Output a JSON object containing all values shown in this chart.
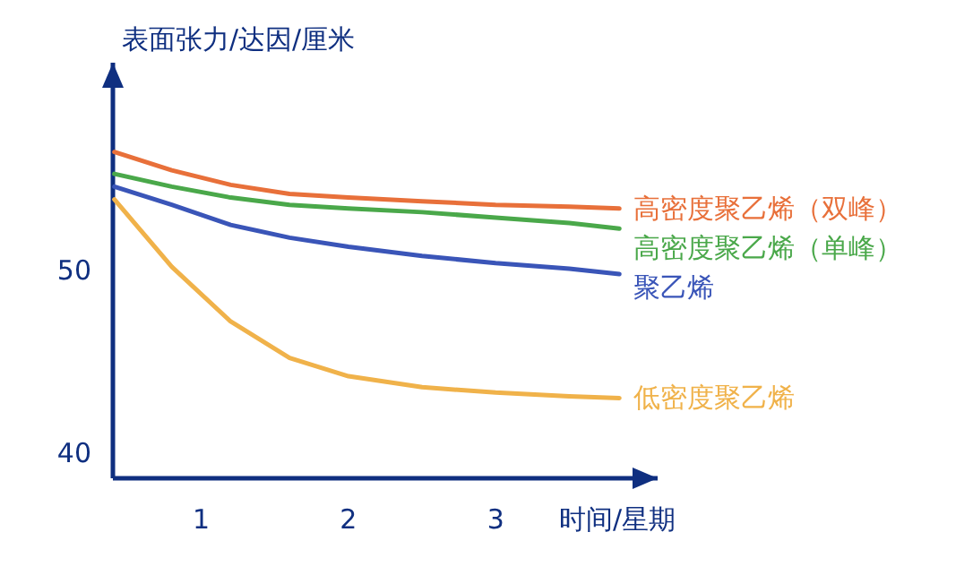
{
  "chart_data": {
    "type": "line",
    "xlabel": "时间/星期",
    "ylabel": "表面张力/达因/厘米",
    "xlim": [
      0.4,
      4.1
    ],
    "xticks": [
      1,
      2,
      3
    ],
    "ylim": [
      38.6,
      61.4
    ],
    "yticks": [
      40,
      50
    ],
    "series": [
      {
        "name": "高密度聚乙烯（双峰）",
        "color": "#e8703a",
        "x": [
          0.41,
          0.8,
          1.2,
          1.6,
          2.0,
          2.5,
          3.0,
          3.5,
          3.84
        ],
        "values": [
          56.5,
          55.5,
          54.7,
          54.2,
          54.0,
          53.8,
          53.6,
          53.5,
          53.4
        ]
      },
      {
        "name": "高密度聚乙烯（单峰）",
        "color": "#4aa84a",
        "x": [
          0.41,
          0.8,
          1.2,
          1.6,
          2.0,
          2.5,
          3.0,
          3.5,
          3.84
        ],
        "values": [
          55.3,
          54.6,
          54.0,
          53.6,
          53.4,
          53.2,
          52.9,
          52.6,
          52.3
        ]
      },
      {
        "name": "聚乙烯",
        "color": "#3a55b8",
        "x": [
          0.41,
          0.8,
          1.2,
          1.6,
          2.0,
          2.5,
          3.0,
          3.5,
          3.84
        ],
        "values": [
          54.6,
          53.6,
          52.5,
          51.8,
          51.3,
          50.8,
          50.4,
          50.1,
          49.8
        ]
      },
      {
        "name": "低密度聚乙烯",
        "color": "#f0b24a",
        "x": [
          0.41,
          0.8,
          1.2,
          1.6,
          2.0,
          2.5,
          3.0,
          3.5,
          3.84
        ],
        "values": [
          53.9,
          50.2,
          47.2,
          45.2,
          44.2,
          43.6,
          43.3,
          43.1,
          43.0
        ]
      }
    ]
  }
}
